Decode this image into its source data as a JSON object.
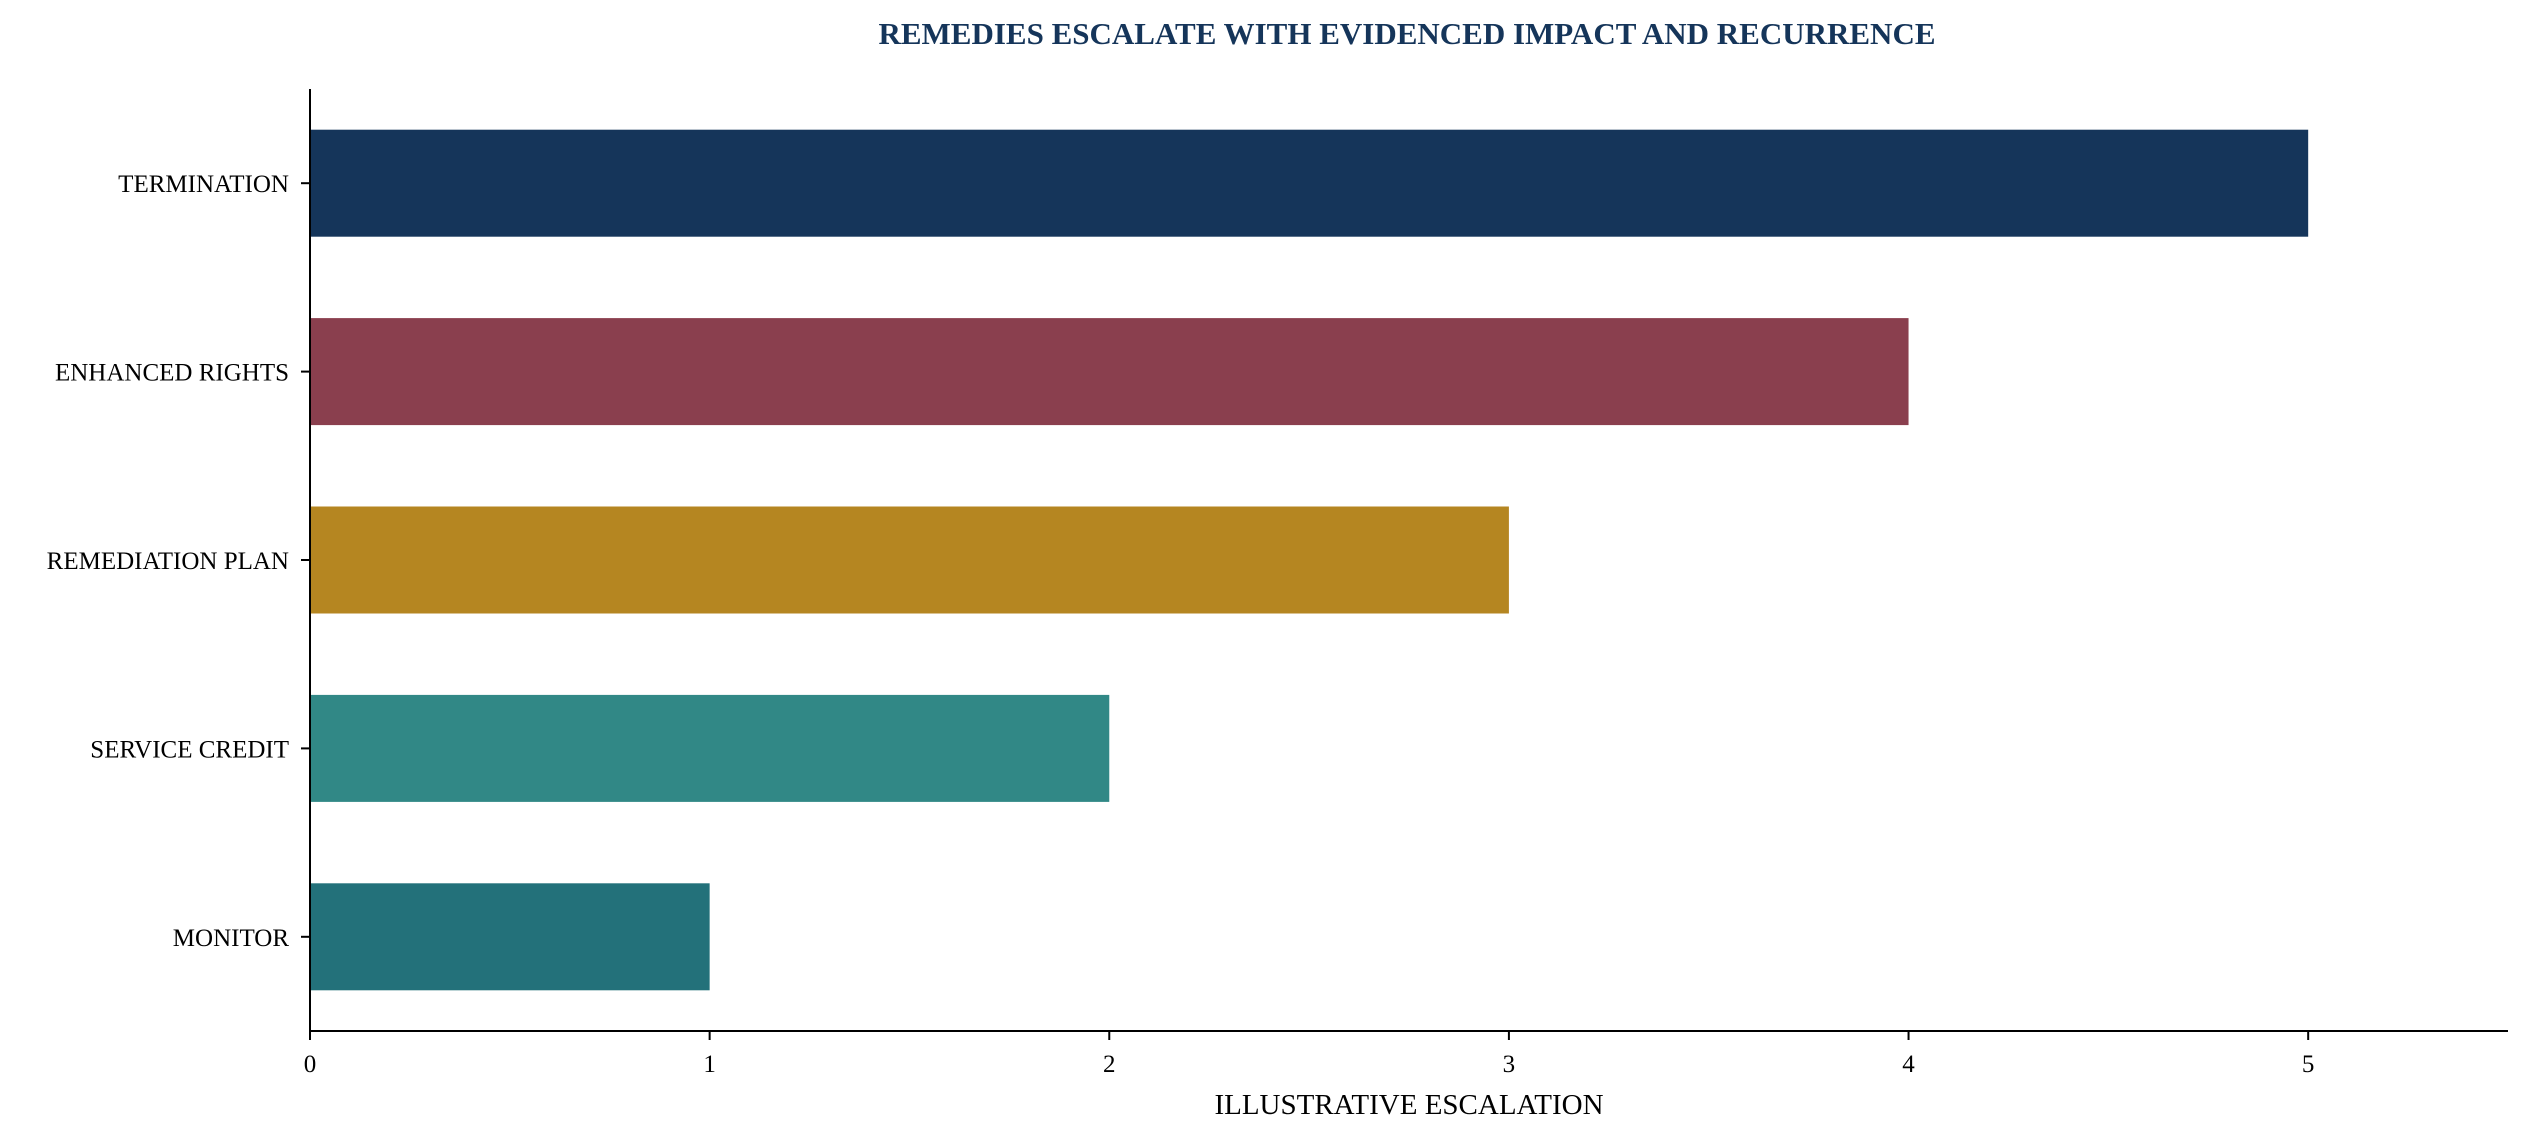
{
  "chart_data": {
    "type": "bar",
    "orientation": "horizontal",
    "title": "REMEDIES ESCALATE WITH EVIDENCED IMPACT AND RECURRENCE",
    "xlabel": "ILLUSTRATIVE ESCALATION",
    "ylabel": "",
    "categories": [
      "MONITOR",
      "SERVICE CREDIT",
      "REMEDIATION PLAN",
      "ENHANCED RIGHTS",
      "TERMINATION"
    ],
    "values": [
      1,
      2,
      3,
      4,
      5
    ],
    "colors": [
      "#23717A",
      "#318886",
      "#B58621",
      "#8A3F4E",
      "#15355A"
    ],
    "xlim": [
      0,
      5.5
    ],
    "xticks": [
      0,
      1,
      2,
      3,
      4,
      5
    ],
    "grid": false,
    "legend": "none",
    "title_color": "#15355A"
  }
}
